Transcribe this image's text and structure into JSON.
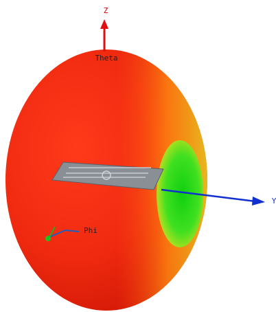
{
  "axes": {
    "z": "Z",
    "theta": "Theta",
    "y": "Y",
    "phi": "Phi"
  }
}
